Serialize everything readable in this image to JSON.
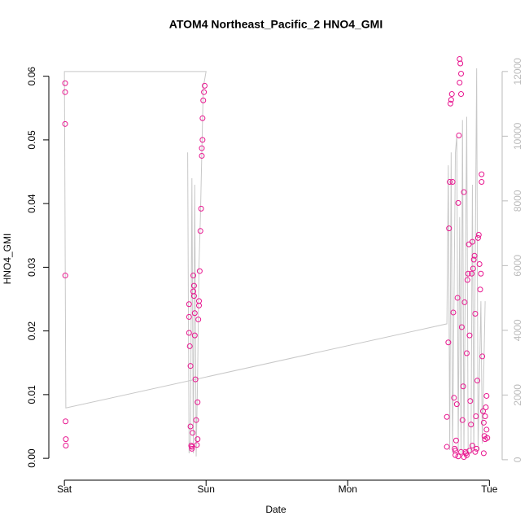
{
  "chart_data": {
    "type": "scatter",
    "title": "ATOM4 Northeast_Pacific_2 HNO4_GMI",
    "x_label": "Date",
    "y_label": "HNO4_GMI",
    "color": "#e8168f",
    "x": [
      0.005,
      0.005,
      0.005,
      0.006,
      0.008,
      0.01,
      0.01,
      0.88,
      0.88,
      0.88,
      0.885,
      0.89,
      0.89,
      0.895,
      0.9,
      0.9,
      0.905,
      0.91,
      0.91,
      0.915,
      0.915,
      0.92,
      0.92,
      0.925,
      0.93,
      0.935,
      0.94,
      0.94,
      0.945,
      0.95,
      0.95,
      0.955,
      0.96,
      0.965,
      0.97,
      0.97,
      0.975,
      0.975,
      0.98,
      0.985,
      0.99,
      2.7,
      2.7,
      2.71,
      2.715,
      2.72,
      2.725,
      2.73,
      2.735,
      2.74,
      2.745,
      2.75,
      2.755,
      2.76,
      2.765,
      2.77,
      2.775,
      2.78,
      2.785,
      2.79,
      2.79,
      2.795,
      2.8,
      2.8,
      2.805,
      2.81,
      2.815,
      2.82,
      2.825,
      2.83,
      2.835,
      2.84,
      2.845,
      2.85,
      2.855,
      2.86,
      2.865,
      2.87,
      2.875,
      2.88,
      2.885,
      2.89,
      2.895,
      2.9,
      2.905,
      2.91,
      2.915,
      2.92,
      2.925,
      2.93,
      2.935,
      2.94,
      2.945,
      2.945,
      2.95,
      2.955,
      2.96,
      2.965,
      2.97,
      2.975,
      2.98,
      2.98,
      2.985,
      2.97,
      2.96,
      2.9,
      2.88,
      2.86,
      2.84,
      2.82,
      2.8,
      2.78,
      2.76
    ],
    "values": [
      0.0589,
      0.0575,
      0.0525,
      0.0287,
      0.0058,
      0.003,
      0.002,
      0.0242,
      0.0222,
      0.0197,
      0.0176,
      0.0145,
      0.005,
      0.002,
      0.0015,
      0.0018,
      0.004,
      0.0262,
      0.0287,
      0.0271,
      0.0255,
      0.0193,
      0.0228,
      0.0124,
      0.006,
      0.0021,
      0.003,
      0.0088,
      0.0218,
      0.0247,
      0.024,
      0.0294,
      0.0357,
      0.0392,
      0.0475,
      0.0487,
      0.05,
      0.0534,
      0.0562,
      0.0575,
      0.0585,
      0.0018,
      0.0065,
      0.0182,
      0.0361,
      0.0434,
      0.0557,
      0.0563,
      0.0572,
      0.0434,
      0.0229,
      0.0095,
      0.0015,
      0.0005,
      0.0028,
      0.0085,
      0.0252,
      0.0401,
      0.0507,
      0.059,
      0.0627,
      0.062,
      0.0572,
      0.0604,
      0.0206,
      0.006,
      0.0113,
      0.0418,
      0.0245,
      0.001,
      0.0008,
      0.0165,
      0.028,
      0.029,
      0.0336,
      0.0193,
      0.009,
      0.0053,
      0.029,
      0.034,
      0.0298,
      0.0312,
      0.0318,
      0.0227,
      0.0066,
      0.0015,
      0.0122,
      0.0346,
      0.0351,
      0.0305,
      0.0265,
      0.029,
      0.0446,
      0.0434,
      0.016,
      0.0074,
      0.0056,
      0.0035,
      0.0066,
      0.008,
      0.0098,
      0.0045,
      0.0032,
      0.003,
      0.0008,
      0.001,
      0.002,
      0.0012,
      0.0005,
      0.0002,
      0.001,
      0.0003,
      0.0012
    ],
    "line": {
      "type": "line",
      "axis": "y2",
      "color": "#c8c8c8",
      "x": [
        0.87,
        0.88,
        0.89,
        0.9,
        0.91,
        0.92,
        0.93,
        0.94,
        0.95,
        0.96,
        0.97,
        0.98,
        1.0,
        0.0,
        0.01,
        2.7,
        2.71,
        2.72,
        2.73,
        2.74,
        2.76,
        2.77,
        2.78,
        2.79,
        2.8,
        2.81,
        2.82,
        2.84,
        2.85,
        2.87,
        2.88,
        2.89,
        2.91,
        2.92,
        2.94,
        2.95,
        2.97
      ],
      "values": [
        9500,
        200,
        600,
        8700,
        200,
        8500,
        100,
        2500,
        6000,
        7500,
        9500,
        11500,
        12000,
        12000,
        1600,
        4200,
        9100,
        300,
        9500,
        200,
        9500,
        10000,
        300,
        7500,
        200,
        10500,
        300,
        10600,
        200,
        200,
        8500,
        300,
        12100,
        300,
        4900,
        500,
        4900
      ]
    },
    "xlim": [
      -0.11,
      3.09
    ],
    "xticks": [
      {
        "value": 0,
        "label": "Sat"
      },
      {
        "value": 1,
        "label": "Sun"
      },
      {
        "value": 2,
        "label": "Mon"
      },
      {
        "value": 3,
        "label": "Tue"
      }
    ],
    "ylim": [
      -0.0019,
      0.0643
    ],
    "yticks": [
      {
        "value": 0,
        "label": "0.00"
      },
      {
        "value": 0.01,
        "label": "0.01"
      },
      {
        "value": 0.02,
        "label": "0.02"
      },
      {
        "value": 0.03,
        "label": "0.03"
      },
      {
        "value": 0.04,
        "label": "0.04"
      },
      {
        "value": 0.05,
        "label": "0.05"
      },
      {
        "value": 0.06,
        "label": "0.06"
      }
    ],
    "y2lim": [
      -330,
      12700
    ],
    "y2ticks": [
      0,
      2000,
      4000,
      6000,
      8000,
      10000,
      12000
    ]
  }
}
